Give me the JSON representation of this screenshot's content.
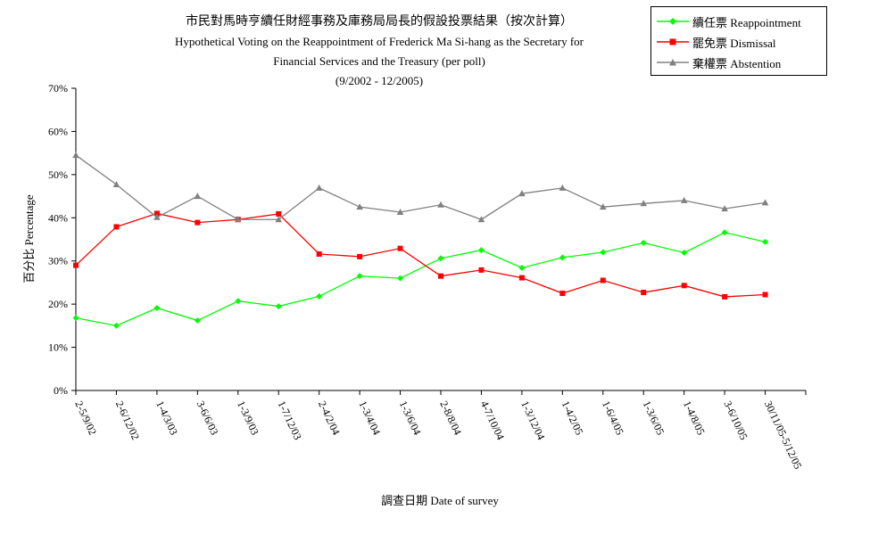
{
  "chart_data": {
    "type": "line",
    "title": "市民對馬時亨續任財經事務及庫務局局長的假設投票結果（按次計算）",
    "subtitle": [
      "Hypothetical Voting on the Reappointment of  Frederick Ma Si-hang as the Secretary for",
      "Financial Services and the Treasury (per poll)",
      "(9/2002 - 12/2005)"
    ],
    "xlabel": "調查日期 Date of survey",
    "ylabel": "百分比 Percentage",
    "ylim": [
      0,
      70
    ],
    "yticks": [
      "0%",
      "10%",
      "20%",
      "30%",
      "40%",
      "50%",
      "60%",
      "70%"
    ],
    "grid": false,
    "legend_position": "top-right",
    "categories": [
      "2-5/9/02",
      "2-6/12/02",
      "1-4/3/03",
      "3-6/6/03",
      "1-3/9/03",
      "1-7/12/03",
      "2-4/2/04",
      "1-3/4/04",
      "1-3/6/04",
      "2-8/8/04",
      "4-7/10/04",
      "1-3/12/04",
      "1-4/2/05",
      "1-6/4/05",
      "1-3/6/05",
      "1-4/8/05",
      "3-6/10/05",
      "30/11/05-5/12/05"
    ],
    "series": [
      {
        "name": "續任票 Reappointment",
        "color": "#00ff00",
        "marker": "diamond",
        "values": [
          16.8,
          15.0,
          19.1,
          16.2,
          20.7,
          19.5,
          21.8,
          26.5,
          26.0,
          30.6,
          32.5,
          28.4,
          30.8,
          32.0,
          34.2,
          31.9,
          36.6,
          34.4
        ]
      },
      {
        "name": "罷免票 Dismissal",
        "color": "#ff0000",
        "marker": "square",
        "values": [
          29.0,
          37.9,
          41.0,
          38.9,
          39.6,
          40.9,
          31.6,
          31.0,
          32.9,
          26.5,
          27.9,
          26.1,
          22.5,
          25.5,
          22.7,
          24.3,
          21.7,
          22.2
        ]
      },
      {
        "name": "棄權票 Abstention",
        "color": "#808080",
        "marker": "triangle",
        "values": [
          54.5,
          47.7,
          40.1,
          45.0,
          39.6,
          39.6,
          46.9,
          42.5,
          41.3,
          43.0,
          39.6,
          45.6,
          46.9,
          42.5,
          43.3,
          44.0,
          42.1,
          43.5
        ]
      }
    ]
  }
}
